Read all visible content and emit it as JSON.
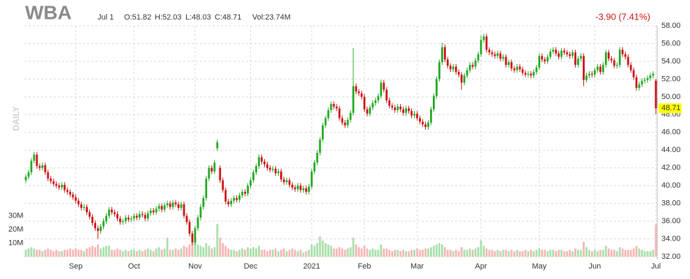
{
  "header": {
    "symbol": "WBA",
    "date": "Jul 1",
    "open": "O:51.82",
    "high": "H:52.03",
    "low": "L:48.03",
    "close": "C:48.71",
    "volume": "Vol:23.74M",
    "change": "-3.90 (7.41%)",
    "period": "DAILY"
  },
  "chart_data": {
    "type": "candlestick",
    "up_color": "#1fa81f",
    "down_color": "#cc1111",
    "volume_up_color": "#a9dfa9",
    "volume_down_color": "#f5b5b5",
    "last_price_color": "#ffff00",
    "grid": true,
    "categories": [
      null,
      null,
      null,
      null,
      null,
      null,
      null,
      null,
      null,
      null,
      null,
      null,
      null,
      null,
      null,
      null,
      null,
      null,
      "Sep",
      null,
      null,
      null,
      null,
      null,
      null,
      null,
      null,
      null,
      null,
      null,
      null,
      null,
      null,
      null,
      null,
      null,
      null,
      null,
      null,
      "Oct",
      null,
      null,
      null,
      null,
      null,
      null,
      null,
      null,
      null,
      null,
      null,
      null,
      null,
      null,
      null,
      null,
      null,
      null,
      null,
      null,
      null,
      "Nov",
      null,
      null,
      null,
      null,
      null,
      null,
      null,
      null,
      null,
      null,
      null,
      null,
      null,
      null,
      null,
      null,
      null,
      null,
      null,
      "Dec",
      null,
      null,
      null,
      null,
      null,
      null,
      null,
      null,
      null,
      null,
      null,
      null,
      null,
      null,
      null,
      null,
      null,
      null,
      null,
      null,
      null,
      "2021",
      null,
      null,
      null,
      null,
      null,
      null,
      null,
      null,
      null,
      null,
      null,
      null,
      null,
      null,
      null,
      null,
      null,
      null,
      "Feb",
      null,
      null,
      null,
      null,
      null,
      null,
      null,
      null,
      null,
      null,
      null,
      null,
      null,
      null,
      null,
      null,
      null,
      null,
      "Mar",
      null,
      null,
      null,
      null,
      null,
      null,
      null,
      null,
      null,
      null,
      null,
      null,
      null,
      null,
      null,
      null,
      null,
      null,
      null,
      null,
      null,
      null,
      "Apr",
      null,
      null,
      null,
      null,
      null,
      null,
      null,
      null,
      null,
      null,
      null,
      null,
      null,
      null,
      null,
      null,
      null,
      null,
      null,
      null,
      "May",
      null,
      null,
      null,
      null,
      null,
      null,
      null,
      null,
      null,
      null,
      null,
      null,
      null,
      null,
      null,
      null,
      null,
      null,
      null,
      "Jun",
      null,
      null,
      null,
      null,
      null,
      null,
      null,
      null,
      null,
      null,
      null,
      null,
      null,
      null,
      null,
      null,
      null,
      null,
      null,
      null,
      null,
      "Jul"
    ],
    "open": [
      40.6,
      41.0,
      41.5,
      42.8,
      43.5,
      42.2,
      42.0,
      42.3,
      41.5,
      40.8,
      40.5,
      40.2,
      40.0,
      39.8,
      40.1,
      39.5,
      39.3,
      39.0,
      38.7,
      38.3,
      37.9,
      37.5,
      37.6,
      37.0,
      36.5,
      35.8,
      35.2,
      34.9,
      35.4,
      36.0,
      36.6,
      37.3,
      37.0,
      36.8,
      36.3,
      35.9,
      36.0,
      36.4,
      36.2,
      36.3,
      36.6,
      36.4,
      36.8,
      36.7,
      36.3,
      36.9,
      37.2,
      37.0,
      37.4,
      37.7,
      37.3,
      37.8,
      38.0,
      37.6,
      38.1,
      37.9,
      37.5,
      37.9,
      36.6,
      35.9,
      34.6,
      33.6,
      35.2,
      36.4,
      37.6,
      38.6,
      40.8,
      42.0,
      41.6,
      44.2,
      42.0,
      40.6,
      39.5,
      38.2,
      37.9,
      38.3,
      38.6,
      38.4,
      38.9,
      39.3,
      39.1,
      40.0,
      40.6,
      41.5,
      42.2,
      43.2,
      42.7,
      42.4,
      42.0,
      41.8,
      41.9,
      41.4,
      41.6,
      40.7,
      40.4,
      40.6,
      40.1,
      39.8,
      39.6,
      40.0,
      39.5,
      39.7,
      39.3,
      39.9,
      41.6,
      42.6,
      43.7,
      45.2,
      46.8,
      47.6,
      48.5,
      49.2,
      48.9,
      48.7,
      47.6,
      47.1,
      46.8,
      47.4,
      48.2,
      51.2,
      50.6,
      50.4,
      50.0,
      48.6,
      48.1,
      48.8,
      49.3,
      49.6,
      50.1,
      51.6,
      50.8,
      49.6,
      49.0,
      48.8,
      48.5,
      48.9,
      48.6,
      48.2,
      48.7,
      48.4,
      47.9,
      48.1,
      47.6,
      47.2,
      46.9,
      46.6,
      47.1,
      48.6,
      50.1,
      52.0,
      53.9,
      55.6,
      54.2,
      53.5,
      53.1,
      53.4,
      52.8,
      52.5,
      51.6,
      52.4,
      53.0,
      53.6,
      53.4,
      54.1,
      54.8,
      56.4,
      56.8,
      55.3,
      55.0,
      54.8,
      54.6,
      54.9,
      54.3,
      54.5,
      53.6,
      53.9,
      53.2,
      53.0,
      53.4,
      53.1,
      52.7,
      52.5,
      52.6,
      52.4,
      52.8,
      53.3,
      54.6,
      54.2,
      54.0,
      54.5,
      55.1,
      55.3,
      54.9,
      54.5,
      55.2,
      55.0,
      54.8,
      54.6,
      55.0,
      53.6,
      54.3,
      54.6,
      51.9,
      52.4,
      52.6,
      52.5,
      53.0,
      53.4,
      52.8,
      53.6,
      55.0,
      54.3,
      54.1,
      53.5,
      53.6,
      55.3,
      54.8,
      54.5,
      53.6,
      53.0,
      52.2,
      51.0,
      51.4,
      51.8,
      51.9,
      52.1,
      52.4,
      51.82
    ],
    "high": [
      41.3,
      41.8,
      43.1,
      43.8,
      43.8,
      42.5,
      42.6,
      42.6,
      41.8,
      41.1,
      40.8,
      40.5,
      40.3,
      40.4,
      40.4,
      39.8,
      39.6,
      39.3,
      39.0,
      38.6,
      38.2,
      37.9,
      37.9,
      37.3,
      36.8,
      36.1,
      35.5,
      35.7,
      36.3,
      36.9,
      37.6,
      37.6,
      37.3,
      37.1,
      36.6,
      36.3,
      36.7,
      36.7,
      36.6,
      36.9,
      36.9,
      37.1,
      37.1,
      37.0,
      37.2,
      37.5,
      37.5,
      37.7,
      38.0,
      38.0,
      38.1,
      38.3,
      38.3,
      38.4,
      38.4,
      38.2,
      38.2,
      38.2,
      36.9,
      36.2,
      34.9,
      35.5,
      36.7,
      37.9,
      38.9,
      41.1,
      42.3,
      42.3,
      42.9,
      45.2,
      42.3,
      40.9,
      39.8,
      38.5,
      38.6,
      38.9,
      38.9,
      39.2,
      39.6,
      39.6,
      40.3,
      40.9,
      41.8,
      42.5,
      43.5,
      43.5,
      43.0,
      42.7,
      42.3,
      42.2,
      42.2,
      41.9,
      41.9,
      41.0,
      40.9,
      40.9,
      40.4,
      40.1,
      40.3,
      40.3,
      40.0,
      40.0,
      40.2,
      41.9,
      42.9,
      44.0,
      45.5,
      47.1,
      47.9,
      48.8,
      49.5,
      49.5,
      49.2,
      49.0,
      47.9,
      47.4,
      47.7,
      48.5,
      55.5,
      51.5,
      50.9,
      50.7,
      50.3,
      48.9,
      49.1,
      49.6,
      49.9,
      50.4,
      51.9,
      51.9,
      51.1,
      49.9,
      49.3,
      49.1,
      49.2,
      49.2,
      48.9,
      49.0,
      49.0,
      48.7,
      48.4,
      48.4,
      47.9,
      47.5,
      47.2,
      47.4,
      48.9,
      50.4,
      52.3,
      54.2,
      56.1,
      55.9,
      54.5,
      53.8,
      53.7,
      53.7,
      53.1,
      52.8,
      52.7,
      53.3,
      53.9,
      53.9,
      54.4,
      55.1,
      56.9,
      57.1,
      57.1,
      55.6,
      55.3,
      55.1,
      55.2,
      55.2,
      54.8,
      54.8,
      54.2,
      54.2,
      53.5,
      53.7,
      53.7,
      53.4,
      53.0,
      52.9,
      52.9,
      53.1,
      53.6,
      54.9,
      54.9,
      54.5,
      54.8,
      55.4,
      55.6,
      55.6,
      55.2,
      55.5,
      55.5,
      55.3,
      55.1,
      55.3,
      55.3,
      54.6,
      54.9,
      54.9,
      52.7,
      52.9,
      52.9,
      53.3,
      53.7,
      53.7,
      53.9,
      55.3,
      55.3,
      54.6,
      54.4,
      53.9,
      55.6,
      55.6,
      55.1,
      54.8,
      53.9,
      53.3,
      52.5,
      51.7,
      52.1,
      52.2,
      52.4,
      52.7,
      52.9,
      52.03
    ],
    "low": [
      40.3,
      40.7,
      41.2,
      42.5,
      41.9,
      41.7,
      41.7,
      41.2,
      40.5,
      40.2,
      39.9,
      39.7,
      39.5,
      39.5,
      39.2,
      39.0,
      38.7,
      38.4,
      38.0,
      37.6,
      37.2,
      37.2,
      36.7,
      36.2,
      35.5,
      34.9,
      34.0,
      34.6,
      35.1,
      35.7,
      36.3,
      36.7,
      36.5,
      36.0,
      35.6,
      35.6,
      35.7,
      35.9,
      35.9,
      36.0,
      36.1,
      36.1,
      36.4,
      36.0,
      36.0,
      36.6,
      36.7,
      36.7,
      37.1,
      37.0,
      37.0,
      37.5,
      37.3,
      37.3,
      37.6,
      37.2,
      37.2,
      36.3,
      35.6,
      34.3,
      33.3,
      33.3,
      34.9,
      36.1,
      37.3,
      38.3,
      40.5,
      41.3,
      41.3,
      43.9,
      40.3,
      39.2,
      37.9,
      37.6,
      37.6,
      38.0,
      38.1,
      38.1,
      38.6,
      38.8,
      38.8,
      39.7,
      40.3,
      41.2,
      41.9,
      42.4,
      42.1,
      41.7,
      41.5,
      41.5,
      41.1,
      41.1,
      40.4,
      40.1,
      40.1,
      39.8,
      39.5,
      39.3,
      39.3,
      39.2,
      39.2,
      39.0,
      39.0,
      39.6,
      41.3,
      42.3,
      43.4,
      44.9,
      46.5,
      47.3,
      48.2,
      48.6,
      48.4,
      47.3,
      46.8,
      46.5,
      46.5,
      47.1,
      47.9,
      50.3,
      50.1,
      49.7,
      48.3,
      47.8,
      47.8,
      48.5,
      49.0,
      49.3,
      49.8,
      50.5,
      49.3,
      48.7,
      48.5,
      48.2,
      48.2,
      48.3,
      47.9,
      47.9,
      48.1,
      47.6,
      47.6,
      47.3,
      46.9,
      46.6,
      46.3,
      46.3,
      46.8,
      48.3,
      49.8,
      51.7,
      53.6,
      53.9,
      53.2,
      52.8,
      52.8,
      52.5,
      52.2,
      50.8,
      51.3,
      52.1,
      52.7,
      53.1,
      53.1,
      53.8,
      54.5,
      56.1,
      55.0,
      54.7,
      54.5,
      54.3,
      54.3,
      54.0,
      54.0,
      53.3,
      53.3,
      52.9,
      52.7,
      52.7,
      52.8,
      52.4,
      52.2,
      52.2,
      52.1,
      52.1,
      52.5,
      53.0,
      53.9,
      53.7,
      53.7,
      54.2,
      54.8,
      54.6,
      54.2,
      54.2,
      54.7,
      54.5,
      54.3,
      54.3,
      53.3,
      53.3,
      54.0,
      51.2,
      51.6,
      52.1,
      52.2,
      52.2,
      52.7,
      52.5,
      52.5,
      53.3,
      54.0,
      53.8,
      53.2,
      53.2,
      53.3,
      54.5,
      54.2,
      53.3,
      52.7,
      51.9,
      50.7,
      50.7,
      51.1,
      51.5,
      51.6,
      51.8,
      52.1,
      48.03
    ],
    "close": [
      41.0,
      41.5,
      42.8,
      43.5,
      42.2,
      42.0,
      42.3,
      41.5,
      40.8,
      40.5,
      40.2,
      40.0,
      39.8,
      40.1,
      39.5,
      39.3,
      39.0,
      38.7,
      38.3,
      37.9,
      37.5,
      37.6,
      37.0,
      36.5,
      35.8,
      35.2,
      34.9,
      35.4,
      36.0,
      36.6,
      37.3,
      37.0,
      36.8,
      36.3,
      35.9,
      36.0,
      36.4,
      36.2,
      36.3,
      36.6,
      36.4,
      36.8,
      36.7,
      36.3,
      36.9,
      37.2,
      37.0,
      37.4,
      37.7,
      37.3,
      37.8,
      38.0,
      37.6,
      38.1,
      37.9,
      37.5,
      37.9,
      36.6,
      35.9,
      34.6,
      33.6,
      35.2,
      36.4,
      37.6,
      38.6,
      40.8,
      42.0,
      41.6,
      42.6,
      44.9,
      40.6,
      39.5,
      38.2,
      37.9,
      38.3,
      38.6,
      38.4,
      38.9,
      39.3,
      39.1,
      40.0,
      40.6,
      41.5,
      42.2,
      43.2,
      42.7,
      42.4,
      42.0,
      41.8,
      41.9,
      41.4,
      41.6,
      40.7,
      40.4,
      40.6,
      40.1,
      39.8,
      39.6,
      40.0,
      39.5,
      39.7,
      39.3,
      39.9,
      41.6,
      42.6,
      43.7,
      45.2,
      46.8,
      47.6,
      48.5,
      49.2,
      48.9,
      48.7,
      47.6,
      47.1,
      46.8,
      47.4,
      48.2,
      51.2,
      50.6,
      50.4,
      50.0,
      48.6,
      48.1,
      48.8,
      49.3,
      49.6,
      50.1,
      51.6,
      50.8,
      49.6,
      49.0,
      48.8,
      48.5,
      48.9,
      48.6,
      48.2,
      48.7,
      48.4,
      47.9,
      48.1,
      47.6,
      47.2,
      46.9,
      46.6,
      47.1,
      48.6,
      50.1,
      52.0,
      53.9,
      55.6,
      54.2,
      53.5,
      53.1,
      53.4,
      52.8,
      52.5,
      51.6,
      52.4,
      53.0,
      53.6,
      53.4,
      54.1,
      54.8,
      56.4,
      56.8,
      55.3,
      55.0,
      54.8,
      54.6,
      54.9,
      54.3,
      54.5,
      53.6,
      53.9,
      53.2,
      53.0,
      53.4,
      53.1,
      52.7,
      52.5,
      52.6,
      52.4,
      52.8,
      53.3,
      54.6,
      54.2,
      54.0,
      54.5,
      55.1,
      55.3,
      54.9,
      54.5,
      55.2,
      55.0,
      54.8,
      54.6,
      55.0,
      53.6,
      54.3,
      54.6,
      51.9,
      52.4,
      52.6,
      52.5,
      53.0,
      53.4,
      52.8,
      53.6,
      55.0,
      54.3,
      54.1,
      53.5,
      53.6,
      55.3,
      54.8,
      54.5,
      53.6,
      53.0,
      52.2,
      51.0,
      51.4,
      51.8,
      51.9,
      52.1,
      52.4,
      52.61,
      48.71
    ],
    "volume": [
      5,
      6,
      7,
      6,
      5,
      5,
      4,
      5,
      6,
      5,
      4,
      5,
      4,
      4,
      5,
      5,
      6,
      5,
      6,
      5,
      5,
      4,
      6,
      7,
      8,
      7,
      9,
      6,
      7,
      8,
      8,
      5,
      5,
      6,
      5,
      4,
      5,
      4,
      5,
      5,
      4,
      5,
      4,
      5,
      6,
      5,
      4,
      6,
      7,
      5,
      6,
      14,
      5,
      5,
      6,
      5,
      6,
      8,
      7,
      9,
      10,
      12,
      9,
      8,
      7,
      10,
      8,
      6,
      7,
      24,
      14,
      10,
      8,
      6,
      5,
      5,
      4,
      5,
      6,
      5,
      7,
      6,
      7,
      6,
      8,
      5,
      5,
      4,
      5,
      5,
      6,
      4,
      5,
      6,
      4,
      5,
      6,
      5,
      4,
      5,
      3,
      4,
      5,
      9,
      8,
      10,
      15,
      12,
      10,
      9,
      8,
      6,
      6,
      7,
      6,
      5,
      6,
      7,
      14,
      9,
      7,
      6,
      8,
      6,
      5,
      6,
      5,
      5,
      9,
      6,
      6,
      5,
      4,
      5,
      5,
      4,
      5,
      4,
      4,
      5,
      5,
      6,
      5,
      5,
      6,
      6,
      7,
      8,
      9,
      10,
      9,
      7,
      5,
      5,
      4,
      5,
      4,
      7,
      5,
      5,
      6,
      5,
      6,
      7,
      12,
      8,
      6,
      5,
      5,
      4,
      5,
      4,
      5,
      5,
      4,
      5,
      4,
      5,
      4,
      4,
      5,
      4,
      5,
      4,
      5,
      6,
      5,
      5,
      4,
      5,
      5,
      4,
      5,
      5,
      4,
      4,
      5,
      4,
      6,
      5,
      5,
      11,
      7,
      5,
      4,
      5,
      4,
      5,
      5,
      8,
      6,
      5,
      5,
      4,
      7,
      6,
      5,
      5,
      5,
      6,
      8,
      6,
      5,
      4,
      4,
      4,
      5,
      23.74
    ],
    "ylim": [
      32,
      58
    ],
    "yticks": [
      {
        "value": 32,
        "label": "32.00"
      },
      {
        "value": 34,
        "label": "34.00"
      },
      {
        "value": 36,
        "label": "36.00"
      },
      {
        "value": 38,
        "label": "38.00"
      },
      {
        "value": 40,
        "label": "40.00"
      },
      {
        "value": 42,
        "label": "42.00"
      },
      {
        "value": 44,
        "label": "44.00"
      },
      {
        "value": 46,
        "label": "46.00"
      },
      {
        "value": 48,
        "label": "48.00"
      },
      {
        "value": 50,
        "label": "50.00"
      },
      {
        "value": 52,
        "label": "52.00"
      },
      {
        "value": 54,
        "label": "54.00"
      },
      {
        "value": 56,
        "label": "56.00"
      },
      {
        "value": 58,
        "label": "58.00"
      }
    ],
    "y2lim": [
      0,
      170
    ],
    "y2ticks": [
      {
        "value": 10,
        "label": "10M"
      },
      {
        "value": 20,
        "label": "20M"
      },
      {
        "value": 30,
        "label": "30M"
      }
    ]
  }
}
